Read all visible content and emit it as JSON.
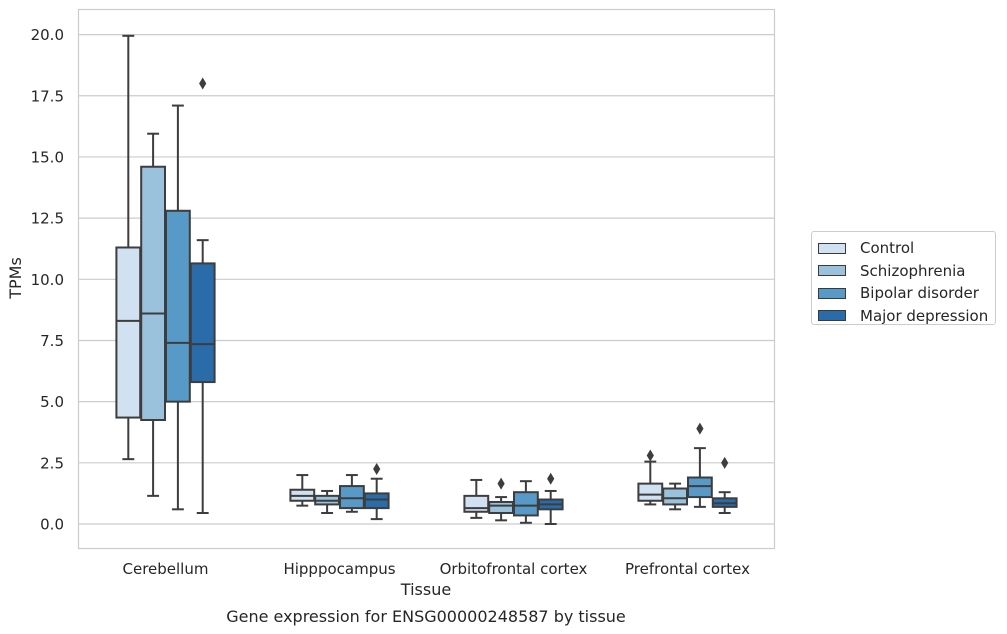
{
  "chart_data": {
    "type": "boxplot",
    "title": "Gene expression for ENSG00000248587 by tissue",
    "xlabel": "Tissue",
    "ylabel": "TPMs",
    "ylim": [
      -1,
      21
    ],
    "yticks": [
      "0.0",
      "2.5",
      "5.0",
      "7.5",
      "10.0",
      "12.5",
      "15.0",
      "17.5",
      "20.0"
    ],
    "grid": "horizontal",
    "legend_placement": "right",
    "categories": [
      "Cerebellum",
      "Hipppocampus",
      "Orbitofrontal cortex",
      "Prefrontal cortex"
    ],
    "series": [
      {
        "name": "Control",
        "color": "#d0e1f1",
        "boxes": [
          {
            "whislo": 2.65,
            "q1": 4.35,
            "med": 8.3,
            "q3": 11.3,
            "whishi": 19.95,
            "fliers": []
          },
          {
            "whislo": 0.75,
            "q1": 0.95,
            "med": 1.15,
            "q3": 1.4,
            "whishi": 2.0,
            "fliers": []
          },
          {
            "whislo": 0.25,
            "q1": 0.5,
            "med": 0.65,
            "q3": 1.15,
            "whishi": 1.8,
            "fliers": []
          },
          {
            "whislo": 0.8,
            "q1": 0.95,
            "med": 1.2,
            "q3": 1.65,
            "whishi": 2.55,
            "fliers": [
              2.8
            ]
          }
        ]
      },
      {
        "name": "Schizophrenia",
        "color": "#9bc2dd",
        "boxes": [
          {
            "whislo": 1.15,
            "q1": 4.25,
            "med": 8.6,
            "q3": 14.6,
            "whishi": 15.95,
            "fliers": []
          },
          {
            "whislo": 0.45,
            "q1": 0.8,
            "med": 0.95,
            "q3": 1.15,
            "whishi": 1.35,
            "fliers": []
          },
          {
            "whislo": 0.15,
            "q1": 0.45,
            "med": 0.75,
            "q3": 0.9,
            "whishi": 1.1,
            "fliers": [
              1.65
            ]
          },
          {
            "whislo": 0.6,
            "q1": 0.8,
            "med": 1.05,
            "q3": 1.45,
            "whishi": 1.65,
            "fliers": []
          }
        ]
      },
      {
        "name": "Bipolar disorder",
        "color": "#5799c7",
        "boxes": [
          {
            "whislo": 0.6,
            "q1": 5.0,
            "med": 7.4,
            "q3": 12.8,
            "whishi": 17.1,
            "fliers": []
          },
          {
            "whislo": 0.5,
            "q1": 0.65,
            "med": 1.05,
            "q3": 1.55,
            "whishi": 2.0,
            "fliers": []
          },
          {
            "whislo": 0.05,
            "q1": 0.35,
            "med": 0.75,
            "q3": 1.3,
            "whishi": 1.75,
            "fliers": []
          },
          {
            "whislo": 0.7,
            "q1": 1.1,
            "med": 1.55,
            "q3": 1.9,
            "whishi": 3.1,
            "fliers": [
              3.9
            ]
          }
        ]
      },
      {
        "name": "Major depression",
        "color": "#2a6ba9",
        "boxes": [
          {
            "whislo": 0.45,
            "q1": 5.8,
            "med": 7.35,
            "q3": 10.65,
            "whishi": 11.6,
            "fliers": [
              18.0
            ]
          },
          {
            "whislo": 0.2,
            "q1": 0.65,
            "med": 1.0,
            "q3": 1.25,
            "whishi": 1.85,
            "fliers": [
              2.25
            ]
          },
          {
            "whislo": 0.0,
            "q1": 0.6,
            "med": 0.8,
            "q3": 1.0,
            "whishi": 1.35,
            "fliers": [
              1.85
            ]
          },
          {
            "whislo": 0.45,
            "q1": 0.7,
            "med": 0.85,
            "q3": 1.05,
            "whishi": 1.3,
            "fliers": [
              2.5
            ]
          }
        ]
      }
    ]
  }
}
